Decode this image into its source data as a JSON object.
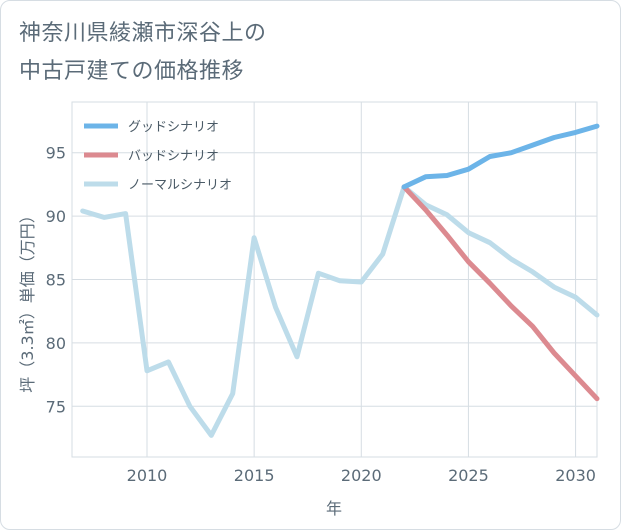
{
  "title": {
    "line1": "神奈川県綾瀬市深谷上の",
    "line2": "中古戸建ての価格推移"
  },
  "chart_data": {
    "type": "line",
    "xlabel": "年",
    "ylabel": "坪（3.3㎡）単価（万円）",
    "xlim": [
      2006.5,
      2031
    ],
    "ylim": [
      71,
      99
    ],
    "x_ticks": [
      2010,
      2015,
      2020,
      2025,
      2030
    ],
    "y_ticks": [
      75,
      80,
      85,
      90,
      95
    ],
    "grid": true,
    "legend_position": "top-left",
    "series": [
      {
        "name": "グッドシナリオ",
        "color": "#6cb4e8",
        "x": [
          2022,
          2023,
          2024,
          2025,
          2026,
          2027,
          2028,
          2029,
          2030,
          2031
        ],
        "y": [
          92.3,
          93.1,
          93.2,
          93.7,
          94.7,
          95.0,
          95.6,
          96.2,
          96.6,
          97.1
        ]
      },
      {
        "name": "バッドシナリオ",
        "color": "#dc8a90",
        "x": [
          2022,
          2023,
          2024,
          2025,
          2026,
          2027,
          2028,
          2029,
          2030,
          2031
        ],
        "y": [
          92.3,
          90.5,
          88.5,
          86.4,
          84.7,
          82.9,
          81.3,
          79.2,
          77.4,
          75.6
        ]
      },
      {
        "name": "ノーマルシナリオ",
        "color": "#bddcea",
        "x": [
          2007,
          2008,
          2009,
          2010,
          2011,
          2012,
          2013,
          2014,
          2015,
          2016,
          2017,
          2018,
          2019,
          2020,
          2021,
          2022,
          2023,
          2024,
          2025,
          2026,
          2027,
          2028,
          2029,
          2030,
          2031
        ],
        "y": [
          90.4,
          89.9,
          90.2,
          77.8,
          78.5,
          75.0,
          72.7,
          76.0,
          88.3,
          82.8,
          78.9,
          85.5,
          84.9,
          84.8,
          87.0,
          92.3,
          90.9,
          90.1,
          88.7,
          87.9,
          86.6,
          85.6,
          84.4,
          83.6,
          82.2
        ]
      }
    ]
  }
}
